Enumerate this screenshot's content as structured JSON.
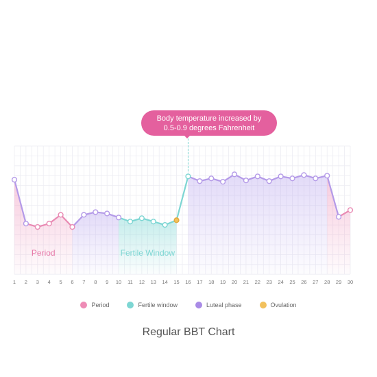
{
  "chart_data": {
    "type": "line",
    "title": "Regular BBT Chart",
    "x": [
      1,
      2,
      3,
      4,
      5,
      6,
      7,
      8,
      9,
      10,
      11,
      12,
      13,
      14,
      15,
      16,
      17,
      18,
      19,
      20,
      21,
      22,
      23,
      24,
      25,
      26,
      27,
      28,
      29,
      30
    ],
    "series": [
      {
        "values": [
          98.3,
          97.65,
          97.6,
          97.65,
          97.78,
          97.6,
          97.78,
          97.82,
          97.8,
          97.74,
          97.68,
          97.73,
          97.68,
          97.63,
          97.7,
          98.35,
          98.28,
          98.32,
          98.27,
          98.38,
          98.29,
          98.35,
          98.28,
          98.35,
          98.32,
          98.37,
          98.32,
          98.36,
          97.75,
          97.85
        ]
      }
    ],
    "ylim": [
      96.9,
      98.8
    ],
    "annotation": {
      "line1": "Body temperature increased by",
      "line2": "0.5-0.9 degrees Fahrenheit",
      "x": 16
    },
    "regions": [
      {
        "label": "Period",
        "x_start": 1,
        "x_end": 6,
        "color": "#ee8cb6"
      },
      {
        "label": "Fertile Window",
        "x_start": 10,
        "x_end": 15,
        "color": "#7dd6d3"
      },
      {
        "label": "",
        "x_start": 6,
        "x_end": 10,
        "color": "#b8a4ee"
      },
      {
        "label": "",
        "x_start": 16,
        "x_end": 28,
        "color": "#b8a4ee"
      },
      {
        "label": "",
        "x_start": 28,
        "x_end": 30,
        "color": "#ee8cb6"
      }
    ],
    "segment_colors": [
      {
        "from": 1,
        "to": 2,
        "color": "#b49ae8"
      },
      {
        "from": 2,
        "to": 6,
        "color": "#e98ab3"
      },
      {
        "from": 6,
        "to": 10,
        "color": "#b49ae8"
      },
      {
        "from": 10,
        "to": 15,
        "color": "#7dd6d3"
      },
      {
        "from": 15,
        "to": 16,
        "color": "#7dd6d3"
      },
      {
        "from": 16,
        "to": 28,
        "color": "#b49ae8"
      },
      {
        "from": 28,
        "to": 29,
        "color": "#b49ae8"
      },
      {
        "from": 29,
        "to": 30,
        "color": "#e98ab3"
      }
    ],
    "ovulation_day": 15,
    "legend": [
      {
        "label": "Period",
        "color": "#ee8cb6"
      },
      {
        "label": "Fertile window",
        "color": "#7dd6d3"
      },
      {
        "label": "Luteal phase",
        "color": "#a98be6"
      },
      {
        "label": "Ovulation",
        "color": "#f2c15d"
      }
    ],
    "grid": true
  }
}
